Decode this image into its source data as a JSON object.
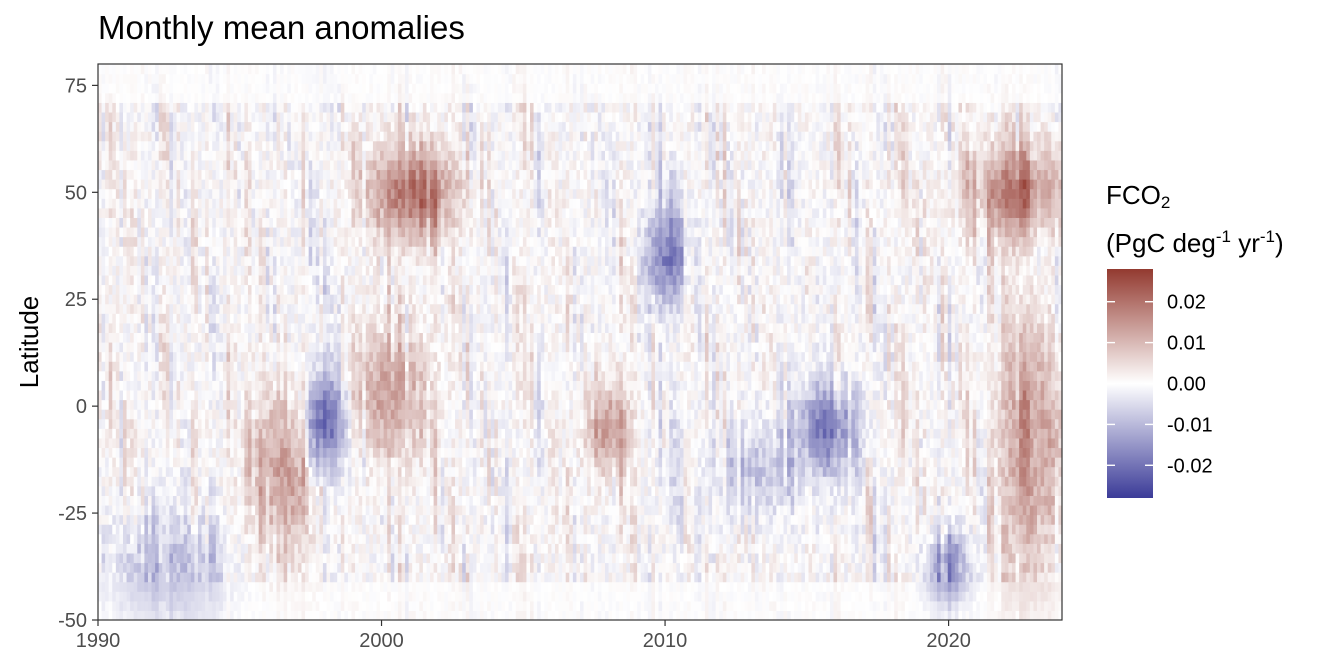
{
  "chart_data": {
    "type": "heatmap",
    "title": "Monthly mean anomalies",
    "xlabel": "",
    "ylabel": "Latitude",
    "xlim": [
      1990,
      2024
    ],
    "ylim": [
      -50,
      80
    ],
    "x_ticks": [
      1990,
      2000,
      2010,
      2020
    ],
    "y_ticks": [
      75,
      50,
      25,
      0,
      -25,
      -50
    ],
    "x_tick_labels": [
      "1990",
      "2000",
      "2010",
      "2020"
    ],
    "y_tick_labels": [
      "75",
      "50",
      "25",
      "0",
      "-25",
      "-50"
    ],
    "legend": {
      "title_main": "FCO",
      "title_sub": "2",
      "unit_a": "(PgC deg",
      "unit_exp1": "-1",
      "unit_b": " yr",
      "unit_exp2": "-1",
      "unit_c": ")",
      "range": [
        -0.028,
        0.028
      ],
      "breaks": [
        0.02,
        0.01,
        0.0,
        -0.01,
        -0.02
      ],
      "labels": [
        "0.02",
        "0.01",
        "0.00",
        "-0.01",
        "-0.02"
      ],
      "placement": "right"
    },
    "colors": {
      "low": "#3b3b98",
      "mid": "#ffffff",
      "high": "#933a30"
    },
    "notable_anomalies": [
      {
        "year_start": 1997.5,
        "year_end": 1998.6,
        "lat_min": -15,
        "lat_max": 8,
        "value": -0.025
      },
      {
        "year_start": 1999.6,
        "year_end": 2002.5,
        "lat_min": 40,
        "lat_max": 60,
        "value": 0.02
      },
      {
        "year_start": 1995.5,
        "year_end": 1997.8,
        "lat_min": -35,
        "lat_max": 5,
        "value": 0.014
      },
      {
        "year_start": 1999.0,
        "year_end": 2001.5,
        "lat_min": -12,
        "lat_max": 18,
        "value": 0.013
      },
      {
        "year_start": 2009.5,
        "year_end": 2010.5,
        "lat_min": 25,
        "lat_max": 45,
        "value": -0.018
      },
      {
        "year_start": 2007.5,
        "year_end": 2008.5,
        "lat_min": -15,
        "lat_max": 5,
        "value": 0.017
      },
      {
        "year_start": 2015.0,
        "year_end": 2016.5,
        "lat_min": -15,
        "lat_max": 5,
        "value": -0.02
      },
      {
        "year_start": 2021.0,
        "year_end": 2023.9,
        "lat_min": 40,
        "lat_max": 60,
        "value": 0.02
      },
      {
        "year_start": 2022.0,
        "year_end": 2023.9,
        "lat_min": -40,
        "lat_max": 20,
        "value": 0.016
      },
      {
        "year_start": 2019.5,
        "year_end": 2020.5,
        "lat_min": -45,
        "lat_max": -30,
        "value": -0.016
      },
      {
        "year_start": 1990.5,
        "year_end": 1994.5,
        "lat_min": -50,
        "lat_max": -25,
        "value": -0.009
      },
      {
        "year_start": 2012.0,
        "year_end": 2014.5,
        "lat_min": -25,
        "lat_max": -5,
        "value": -0.008
      }
    ]
  }
}
